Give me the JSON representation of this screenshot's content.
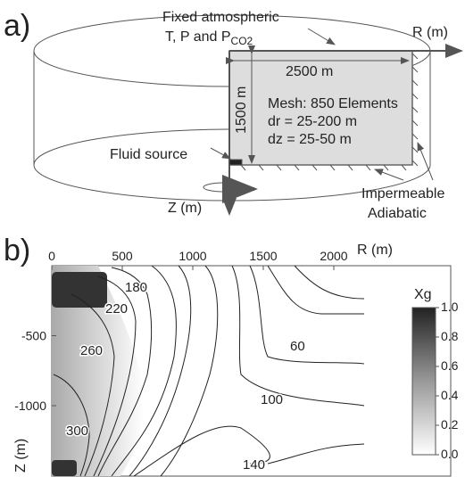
{
  "panel_a": {
    "label": "a)",
    "top_note": "Fixed atmospheric",
    "top_note_2": {
      "text": "T, P and P",
      "subscript": "CO2"
    },
    "r_axis": "R (m)",
    "z_axis": "Z (m)",
    "width": "2500 m",
    "height": "1500 m",
    "mesh": [
      "Mesh: 850 Elements",
      "dr = 25-200 m",
      "dz = 25-50 m"
    ],
    "source": "Fluid source",
    "boundary": [
      "Impermeable",
      "Adiabatic"
    ]
  },
  "panel_b": {
    "label": "b)",
    "x_axis_label": "R (m)",
    "y_axis_label": "Z (m)",
    "xticks": [
      0,
      500,
      1000,
      1500,
      2000
    ],
    "yticks": [
      -500,
      -1000
    ],
    "colorbar": {
      "title": "Xg",
      "ticks": [
        {
          "value": 1,
          "label": "1.0"
        },
        {
          "value": 0.8,
          "label": "0.8"
        },
        {
          "value": 0.6,
          "label": "0.6"
        },
        {
          "value": 0.4,
          "label": "0.4"
        },
        {
          "value": 0.2,
          "label": "0.2"
        },
        {
          "value": 0,
          "label": "0.0"
        }
      ]
    },
    "contour_labels": [
      180,
      220,
      260,
      300,
      60,
      100,
      140
    ]
  }
}
